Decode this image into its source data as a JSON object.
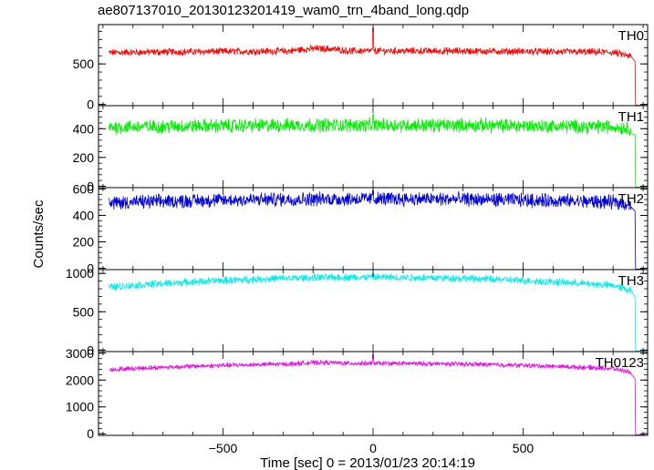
{
  "chart_data": {
    "type": "line",
    "title": "ae807137010_20130123201419_wam0_trn_4band_long.qdp",
    "xlabel": "Time [sec] 0 = 2013/01/23 20:14:19",
    "ylabel": "Counts/sec",
    "xlim": [
      -915,
      915
    ],
    "xticks": [
      -500,
      0,
      500
    ],
    "grid": false,
    "panels": [
      {
        "name": "TH0",
        "color": "#ff0000",
        "ylim": [
          -15,
          985
        ],
        "yticks": [
          0,
          500
        ],
        "base": 640,
        "noise": 45,
        "arch": 20,
        "shoulder": 30,
        "endvalue": 590,
        "spike": 940
      },
      {
        "name": "TH1",
        "color": "#00ee00",
        "ylim": [
          -10,
          560
        ],
        "yticks": [
          0,
          200,
          400
        ],
        "base": 410,
        "noise": 50,
        "arch": 15,
        "shoulder": 0,
        "endvalue": 400,
        "spike": 500
      },
      {
        "name": "TH2",
        "color": "#0000dd",
        "ylim": [
          -10,
          610
        ],
        "yticks": [
          0,
          200,
          400,
          600
        ],
        "base": 495,
        "noise": 55,
        "arch": 30,
        "shoulder": 0,
        "endvalue": 480,
        "spike": 590
      },
      {
        "name": "TH3",
        "color": "#00eeee",
        "ylim": [
          -20,
          1050
        ],
        "yticks": [
          0,
          500,
          1000
        ],
        "base": 820,
        "noise": 50,
        "arch": 130,
        "shoulder": 0,
        "endvalue": 770,
        "spike": 1010
      },
      {
        "name": "TH0123",
        "color": "#ee00ee",
        "ylim": [
          -60,
          3060
        ],
        "yticks": [
          0,
          1000,
          2000,
          3000
        ],
        "base": 2390,
        "noise": 90,
        "arch": 230,
        "shoulder": 40,
        "endvalue": 2280,
        "spike": 2960
      }
    ]
  }
}
